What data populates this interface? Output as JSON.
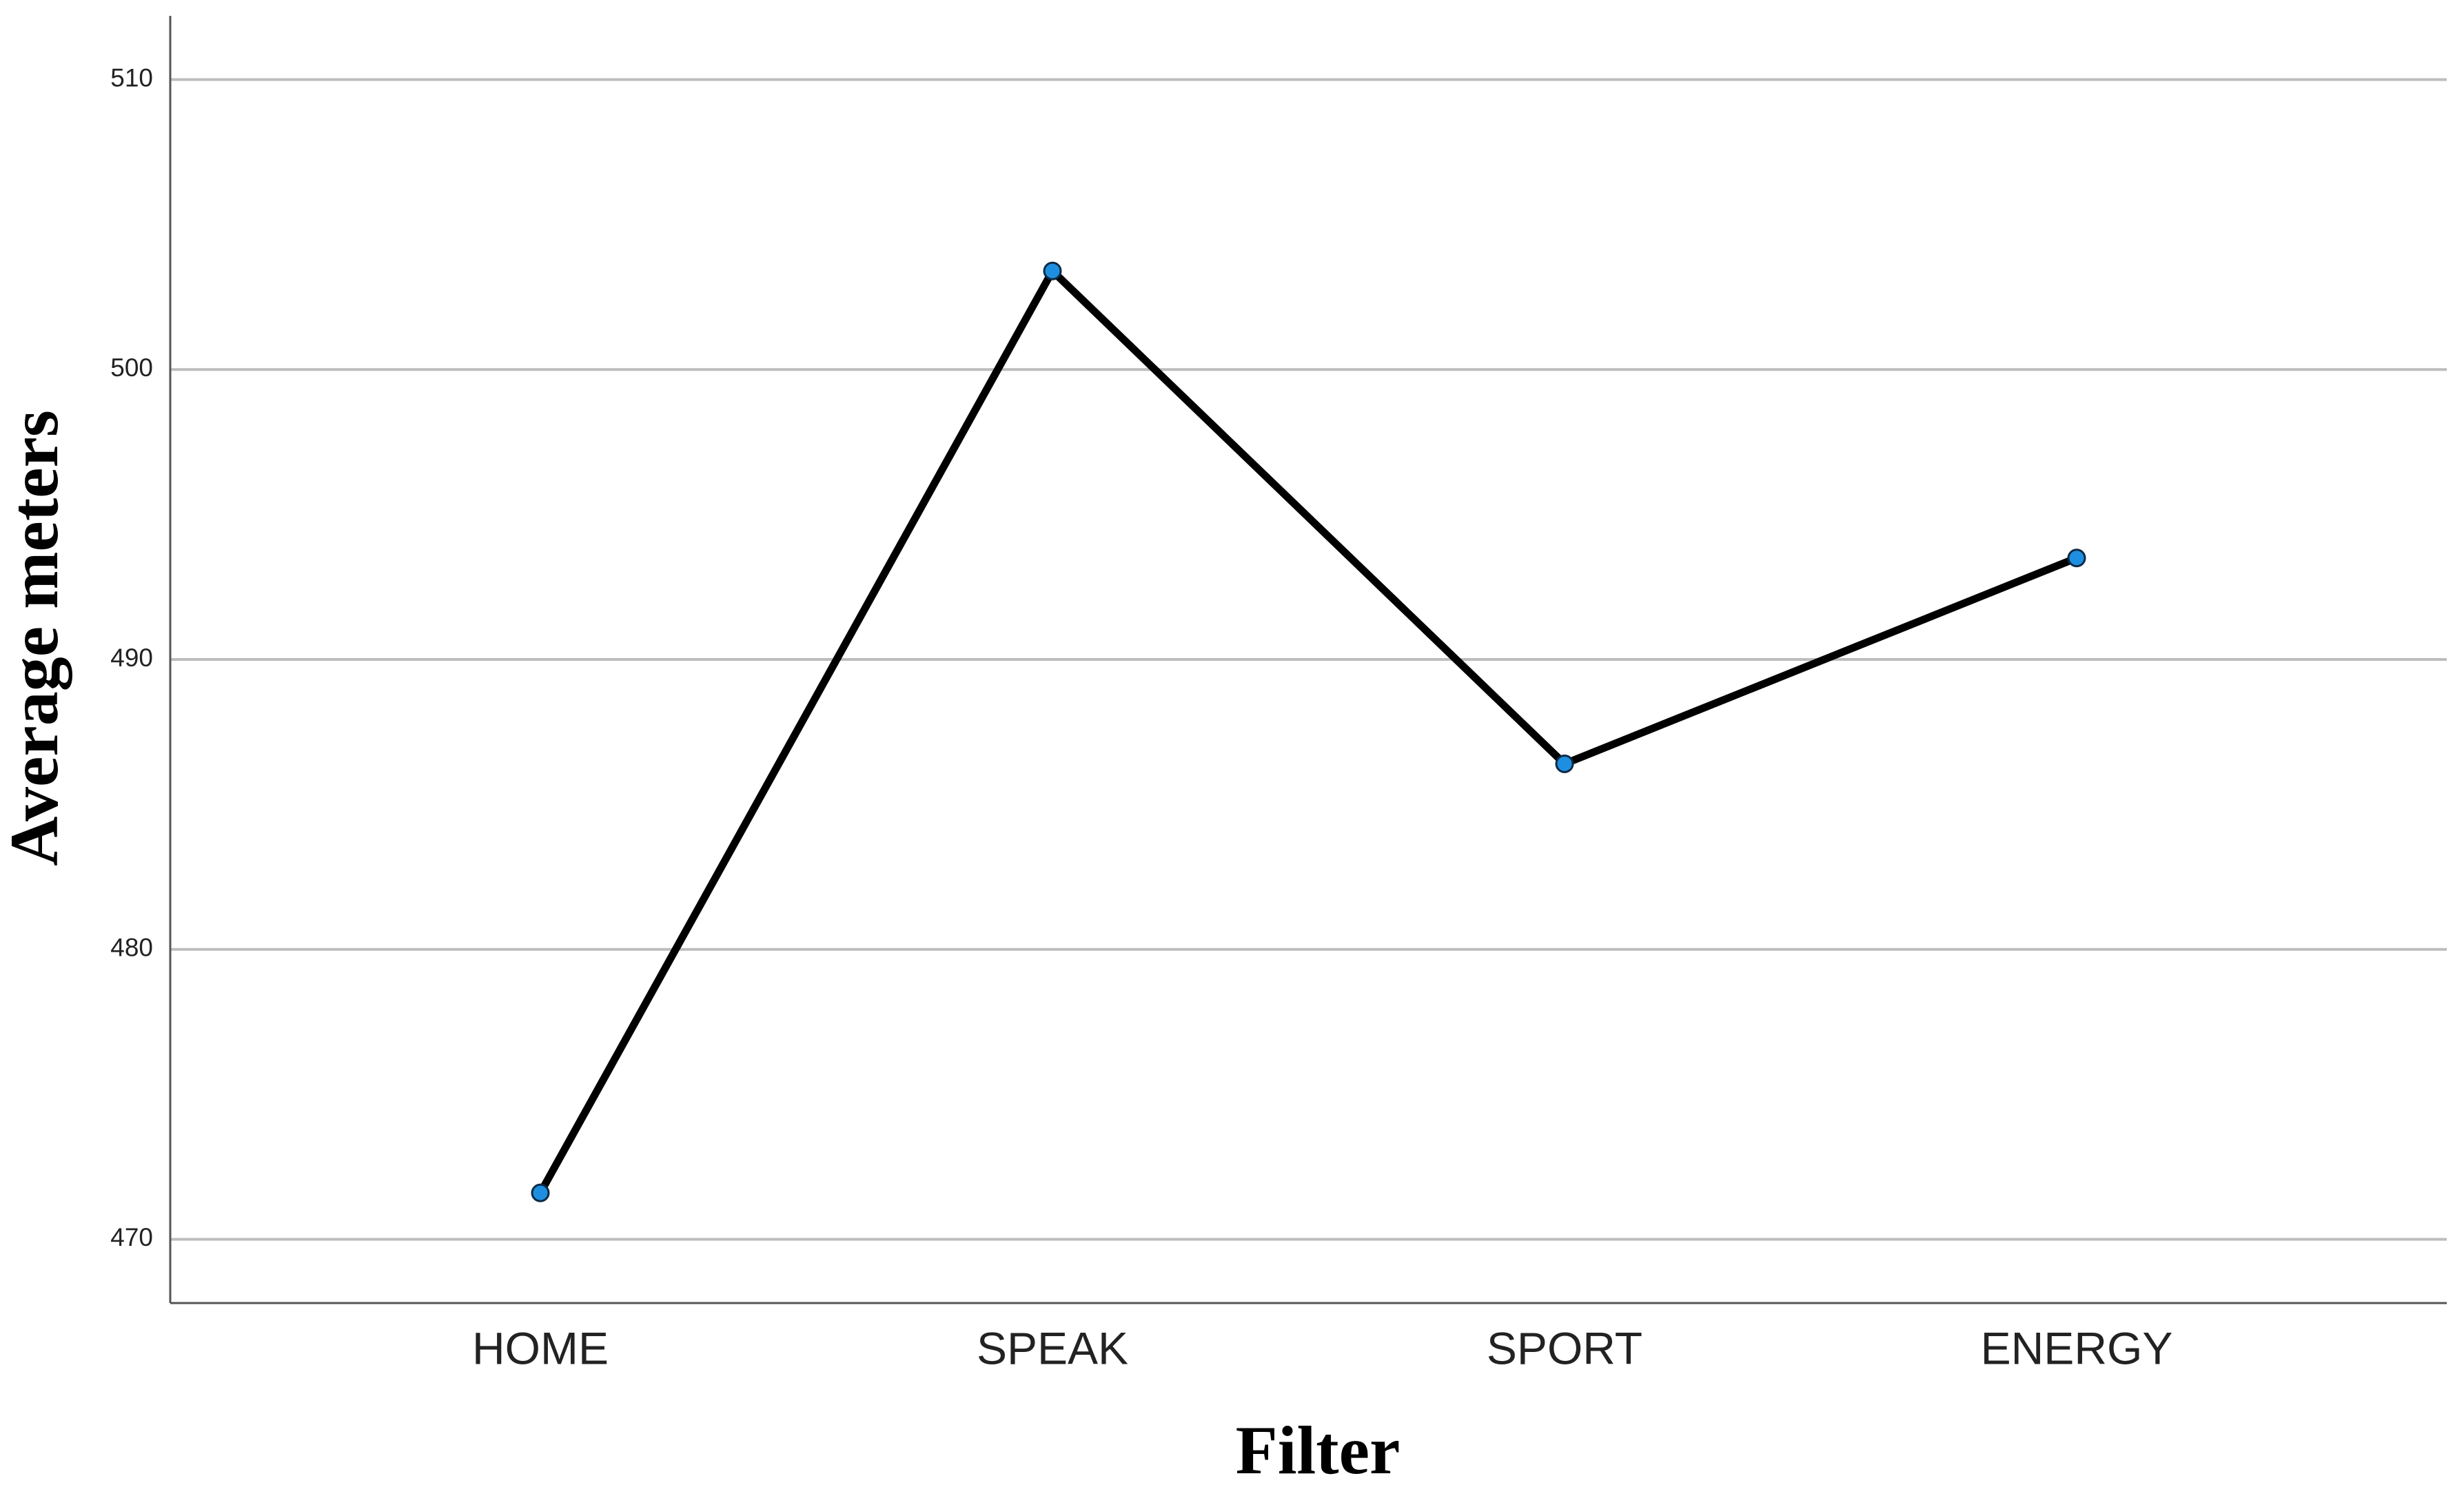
{
  "chart_data": {
    "type": "line",
    "x_label": "Filter",
    "y_label": "Average meters",
    "categories": [
      "HOME",
      "SPEAK",
      "SPORT",
      "ENERGY"
    ],
    "series": [
      {
        "name": "Average meters",
        "color": "#000000",
        "marker_color": "#1e8fe0",
        "values": [
          471.6,
          503.4,
          486.4,
          493.5
        ]
      }
    ],
    "ylim": [
      467.8,
      512.2
    ],
    "yticks": [
      470,
      480,
      490,
      500,
      510
    ],
    "grid": true
  }
}
